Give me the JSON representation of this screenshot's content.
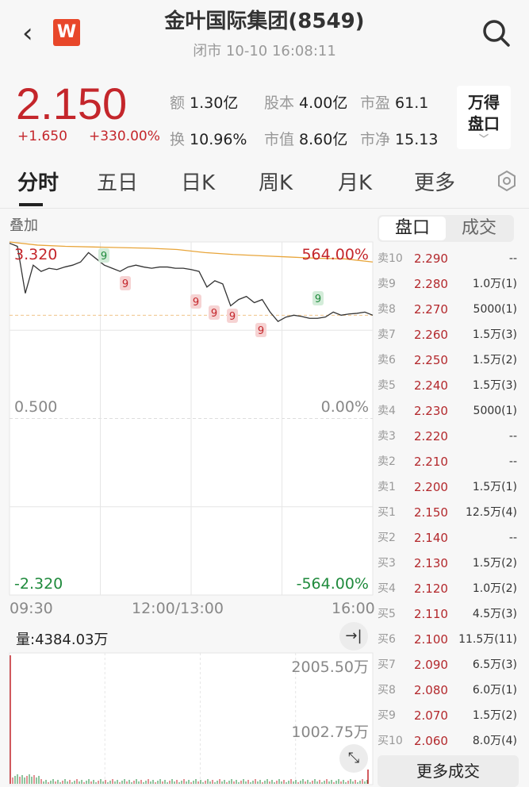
{
  "header": {
    "title": "金叶国际集团(8549)",
    "subtitle": "闭市 10-10 16:08:11",
    "back_icon": "chevron-left-icon",
    "logo_text": "W",
    "search_icon": "search-icon"
  },
  "quote": {
    "price": "2.150",
    "change": "+1.650",
    "change_pct": "+330.00%",
    "stats": [
      {
        "k": "额",
        "v": "1.30亿"
      },
      {
        "k": "股本",
        "v": "4.00亿"
      },
      {
        "k": "市盈",
        "v": "61.1"
      },
      {
        "k": "换",
        "v": "10.96%"
      },
      {
        "k": "市值",
        "v": "8.60亿"
      },
      {
        "k": "市净",
        "v": "15.13"
      }
    ],
    "wind_line1": "万得",
    "wind_line2": "盘口"
  },
  "tabs": [
    "分时",
    "五日",
    "日K",
    "周K",
    "月K",
    "更多"
  ],
  "chart": {
    "overlay_label": "叠加",
    "y_top": "3.320",
    "y_mid": "0.500",
    "y_bot": "-2.320",
    "pct_top": "564.00%",
    "pct_mid": "0.00%",
    "pct_bot": "-564.00%",
    "x_labels": [
      "09:30",
      "12:00/13:00",
      "16:00"
    ],
    "volume_label": "量:4384.03万",
    "vol_top": "2005.50万",
    "vol_mid": "1002.75万",
    "marker": "9"
  },
  "chart_data": {
    "type": "line",
    "ylim": [
      -2.32,
      3.32
    ],
    "prev_close": 0.5,
    "price": [
      3.3,
      3.25,
      2.5,
      2.95,
      2.85,
      2.9,
      2.88,
      2.92,
      2.95,
      3.0,
      3.15,
      3.05,
      2.95,
      2.9,
      2.85,
      2.92,
      2.95,
      2.92,
      2.9,
      2.92,
      2.92,
      2.9,
      2.9,
      2.88,
      2.85,
      2.6,
      2.7,
      2.65,
      2.3,
      2.4,
      2.45,
      2.35,
      2.4,
      2.2,
      2.05,
      2.12,
      2.15,
      2.13,
      2.1,
      2.1,
      2.12,
      2.2,
      2.15,
      2.17,
      2.18,
      2.2,
      2.15
    ],
    "avg": [
      3.32,
      3.27,
      3.25,
      3.24,
      3.23,
      3.22,
      3.2,
      3.15,
      3.12,
      3.1,
      3.08,
      3.06,
      3.05,
      3.0
    ],
    "colors": {
      "price": "#333333",
      "avg": "#e8a53a",
      "up": "#c4262b",
      "down": "#1f8a3c"
    }
  },
  "orderbook": {
    "tabs": [
      "盘口",
      "成交"
    ],
    "rows": [
      [
        "卖10",
        "2.290",
        "--"
      ],
      [
        "卖9",
        "2.280",
        "1.0万(1)"
      ],
      [
        "卖8",
        "2.270",
        "5000(1)"
      ],
      [
        "卖7",
        "2.260",
        "1.5万(3)"
      ],
      [
        "卖6",
        "2.250",
        "1.5万(2)"
      ],
      [
        "卖5",
        "2.240",
        "1.5万(3)"
      ],
      [
        "卖4",
        "2.230",
        "5000(1)"
      ],
      [
        "卖3",
        "2.220",
        "--"
      ],
      [
        "卖2",
        "2.210",
        "--"
      ],
      [
        "卖1",
        "2.200",
        "1.5万(1)"
      ],
      [
        "买1",
        "2.150",
        "12.5万(4)"
      ],
      [
        "买2",
        "2.140",
        "--"
      ],
      [
        "买3",
        "2.130",
        "1.5万(2)"
      ],
      [
        "买4",
        "2.120",
        "1.0万(2)"
      ],
      [
        "买5",
        "2.110",
        "4.5万(3)"
      ],
      [
        "买6",
        "2.100",
        "11.5万(11)"
      ],
      [
        "买7",
        "2.090",
        "6.5万(3)"
      ],
      [
        "买8",
        "2.080",
        "6.0万(1)"
      ],
      [
        "买9",
        "2.070",
        "1.5万(2)"
      ],
      [
        "买10",
        "2.060",
        "8.0万(4)"
      ]
    ],
    "more": "更多成交"
  }
}
